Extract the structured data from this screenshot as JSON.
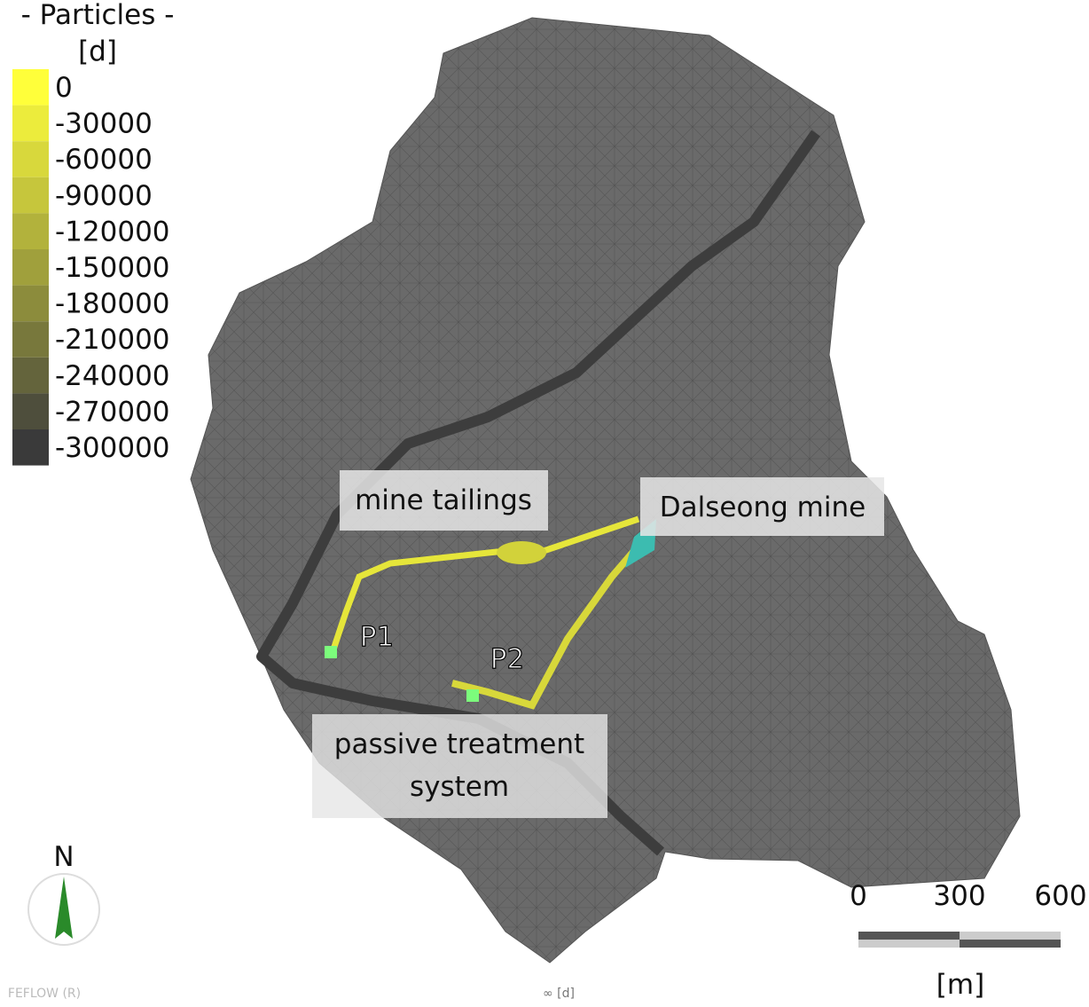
{
  "legend": {
    "title": "- Particles -",
    "unit": "[d]",
    "entries": [
      {
        "value": 0,
        "color": "#ffff3a"
      },
      {
        "value": -30000,
        "color": "#ecec3c"
      },
      {
        "value": -60000,
        "color": "#d8d83c"
      },
      {
        "value": -90000,
        "color": "#c6c63c"
      },
      {
        "value": -120000,
        "color": "#b2b23c"
      },
      {
        "value": -150000,
        "color": "#a0a03c"
      },
      {
        "value": -180000,
        "color": "#8c8c3c"
      },
      {
        "value": -210000,
        "color": "#78783c"
      },
      {
        "value": -240000,
        "color": "#64643c"
      },
      {
        "value": -270000,
        "color": "#4e4e3c"
      },
      {
        "value": -300000,
        "color": "#3a3a3a"
      }
    ]
  },
  "labels": {
    "mine_tailings": "mine tailings",
    "dalseong": "Dalseong mine",
    "p1": "P1",
    "p2": "P2",
    "passive": [
      "passive treatment",
      "system"
    ]
  },
  "north": "N",
  "scale": {
    "ticks": [
      0,
      300,
      600
    ],
    "unit": "[m]"
  },
  "footer": {
    "software": "FEFLOW (R)",
    "time": "∞ [d]"
  }
}
